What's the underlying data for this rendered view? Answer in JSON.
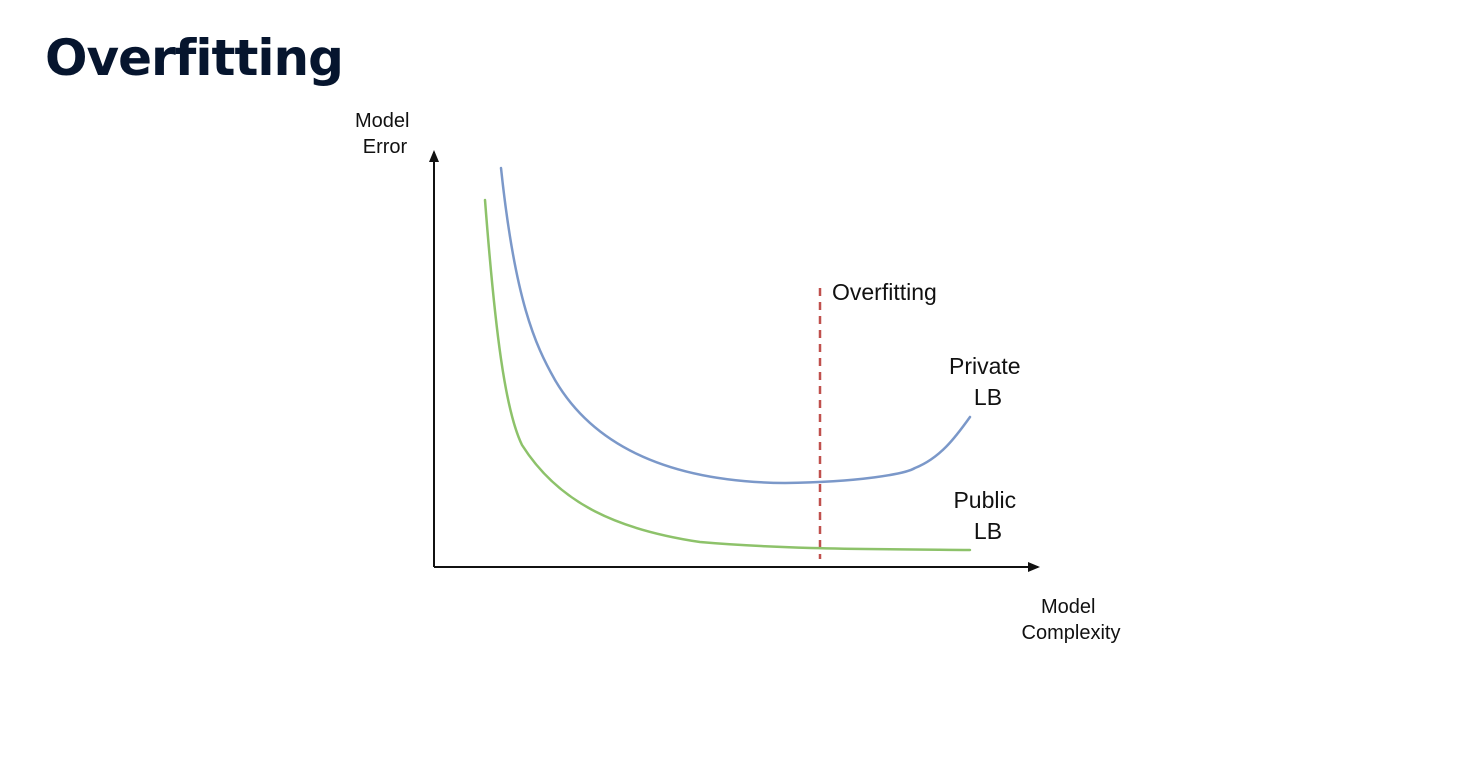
{
  "slide": {
    "title": "Overfitting"
  },
  "diagram": {
    "y_axis_label": [
      "Model",
      "Error"
    ],
    "x_axis_label": [
      "Model",
      "Complexity"
    ],
    "threshold_label": "Overfitting",
    "curves": [
      {
        "id": "private",
        "label": [
          "Private",
          "LB"
        ],
        "color": "#7b98c9"
      },
      {
        "id": "public",
        "label": [
          "Public",
          "LB"
        ],
        "color": "#8dc26a"
      }
    ],
    "threshold_color": "#c0504d",
    "axis_color": "#111111"
  }
}
